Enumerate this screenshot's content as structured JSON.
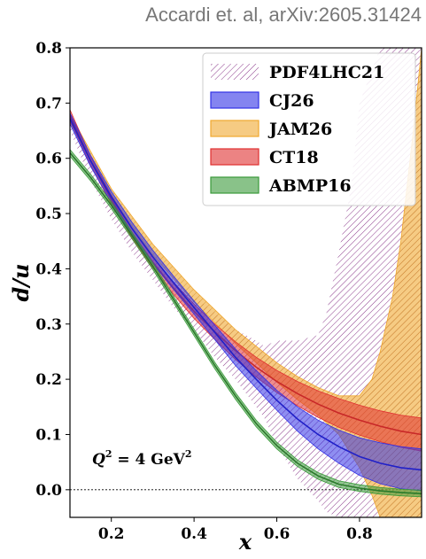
{
  "citation": "Accardi et. al, arXiv:2605.31424",
  "chart_data": {
    "type": "line",
    "xlabel": "x",
    "ylabel": "d/u",
    "xlim": [
      0.1,
      0.95
    ],
    "ylim": [
      -0.05,
      0.8
    ],
    "xticks": [
      "0.2",
      "0.4",
      "0.6",
      "0.8"
    ],
    "yticks": [
      "0.0",
      "0.1",
      "0.2",
      "0.3",
      "0.4",
      "0.5",
      "0.6",
      "0.7",
      "0.8"
    ],
    "annotation": {
      "lhs": "Q",
      "exp1": "2",
      "eq": " = 4 GeV",
      "exp2": "2"
    },
    "reference_line_y": 0.0,
    "legend_position": "top-right",
    "series": [
      {
        "name": "PDF4LHC21",
        "style": "hatch",
        "color": "#8b3a8b",
        "x": [
          0.1,
          0.15,
          0.2,
          0.25,
          0.3,
          0.35,
          0.4,
          0.45,
          0.5,
          0.55,
          0.57,
          0.6,
          0.65,
          0.7,
          0.72,
          0.75,
          0.78,
          0.8,
          0.85,
          0.9,
          0.95
        ],
        "upper": [
          0.69,
          0.59,
          0.52,
          0.46,
          0.42,
          0.38,
          0.35,
          0.32,
          0.29,
          0.27,
          0.26,
          0.27,
          0.27,
          0.28,
          0.32,
          0.43,
          0.55,
          0.7,
          0.8,
          0.8,
          0.8
        ],
        "lower": [
          0.65,
          0.56,
          0.49,
          0.43,
          0.38,
          0.33,
          0.29,
          0.24,
          0.2,
          0.15,
          0.13,
          0.08,
          0.02,
          -0.02,
          -0.04,
          -0.05,
          -0.05,
          -0.05,
          -0.05,
          -0.05,
          -0.05
        ]
      },
      {
        "name": "CJ26",
        "style": "band",
        "color": "#3232e6",
        "central_color": "#2020c8",
        "x": [
          0.1,
          0.15,
          0.2,
          0.25,
          0.3,
          0.35,
          0.4,
          0.45,
          0.5,
          0.55,
          0.6,
          0.65,
          0.7,
          0.75,
          0.8,
          0.85,
          0.9,
          0.95
        ],
        "central": [
          0.672,
          0.595,
          0.53,
          0.473,
          0.422,
          0.375,
          0.33,
          0.285,
          0.24,
          0.2,
          0.162,
          0.128,
          0.1,
          0.078,
          0.06,
          0.048,
          0.04,
          0.036
        ],
        "upper": [
          0.682,
          0.605,
          0.54,
          0.484,
          0.434,
          0.387,
          0.342,
          0.298,
          0.255,
          0.216,
          0.18,
          0.15,
          0.126,
          0.108,
          0.094,
          0.085,
          0.078,
          0.074
        ],
        "lower": [
          0.662,
          0.585,
          0.52,
          0.462,
          0.41,
          0.363,
          0.318,
          0.272,
          0.225,
          0.184,
          0.144,
          0.106,
          0.074,
          0.048,
          0.026,
          0.011,
          0.002,
          -0.002
        ]
      },
      {
        "name": "JAM26",
        "style": "band",
        "color": "#f0a830",
        "x": [
          0.1,
          0.2,
          0.3,
          0.4,
          0.5,
          0.6,
          0.65,
          0.7,
          0.75,
          0.8,
          0.83,
          0.85,
          0.88,
          0.9,
          0.93,
          0.95
        ],
        "upper": [
          0.68,
          0.545,
          0.445,
          0.362,
          0.29,
          0.23,
          0.205,
          0.185,
          0.17,
          0.17,
          0.2,
          0.25,
          0.35,
          0.45,
          0.65,
          0.8
        ],
        "lower": [
          0.665,
          0.53,
          0.425,
          0.34,
          0.265,
          0.195,
          0.163,
          0.135,
          0.1,
          0.04,
          -0.01,
          -0.05,
          -0.05,
          -0.05,
          -0.05,
          -0.05
        ]
      },
      {
        "name": "CT18",
        "style": "band",
        "color": "#e03030",
        "central_color": "#c82828",
        "x": [
          0.1,
          0.15,
          0.2,
          0.25,
          0.3,
          0.35,
          0.4,
          0.45,
          0.5,
          0.55,
          0.6,
          0.65,
          0.7,
          0.75,
          0.8,
          0.85,
          0.9,
          0.95
        ],
        "central": [
          0.678,
          0.595,
          0.525,
          0.465,
          0.412,
          0.365,
          0.323,
          0.286,
          0.252,
          0.222,
          0.196,
          0.174,
          0.155,
          0.139,
          0.126,
          0.115,
          0.106,
          0.1
        ],
        "upper": [
          0.688,
          0.603,
          0.533,
          0.474,
          0.422,
          0.376,
          0.336,
          0.3,
          0.268,
          0.24,
          0.216,
          0.196,
          0.179,
          0.165,
          0.153,
          0.143,
          0.135,
          0.13
        ],
        "lower": [
          0.668,
          0.587,
          0.517,
          0.456,
          0.402,
          0.354,
          0.31,
          0.272,
          0.236,
          0.204,
          0.176,
          0.152,
          0.131,
          0.113,
          0.099,
          0.087,
          0.077,
          0.07
        ]
      },
      {
        "name": "ABMP16",
        "style": "band",
        "color": "#3a9a3a",
        "central_color": "#2a7a2a",
        "x": [
          0.1,
          0.15,
          0.2,
          0.25,
          0.3,
          0.35,
          0.4,
          0.45,
          0.5,
          0.55,
          0.6,
          0.65,
          0.7,
          0.75,
          0.8,
          0.85,
          0.9,
          0.95
        ],
        "central": [
          0.61,
          0.565,
          0.515,
          0.46,
          0.405,
          0.345,
          0.285,
          0.225,
          0.17,
          0.12,
          0.08,
          0.048,
          0.025,
          0.01,
          0.003,
          -0.002,
          -0.005,
          -0.007
        ],
        "upper": [
          0.616,
          0.571,
          0.521,
          0.466,
          0.411,
          0.351,
          0.291,
          0.231,
          0.176,
          0.126,
          0.086,
          0.054,
          0.031,
          0.016,
          0.009,
          0.004,
          0.001,
          -0.001
        ],
        "lower": [
          0.604,
          0.559,
          0.509,
          0.454,
          0.399,
          0.339,
          0.279,
          0.219,
          0.164,
          0.114,
          0.074,
          0.042,
          0.019,
          0.004,
          -0.003,
          -0.008,
          -0.011,
          -0.013
        ]
      }
    ]
  }
}
